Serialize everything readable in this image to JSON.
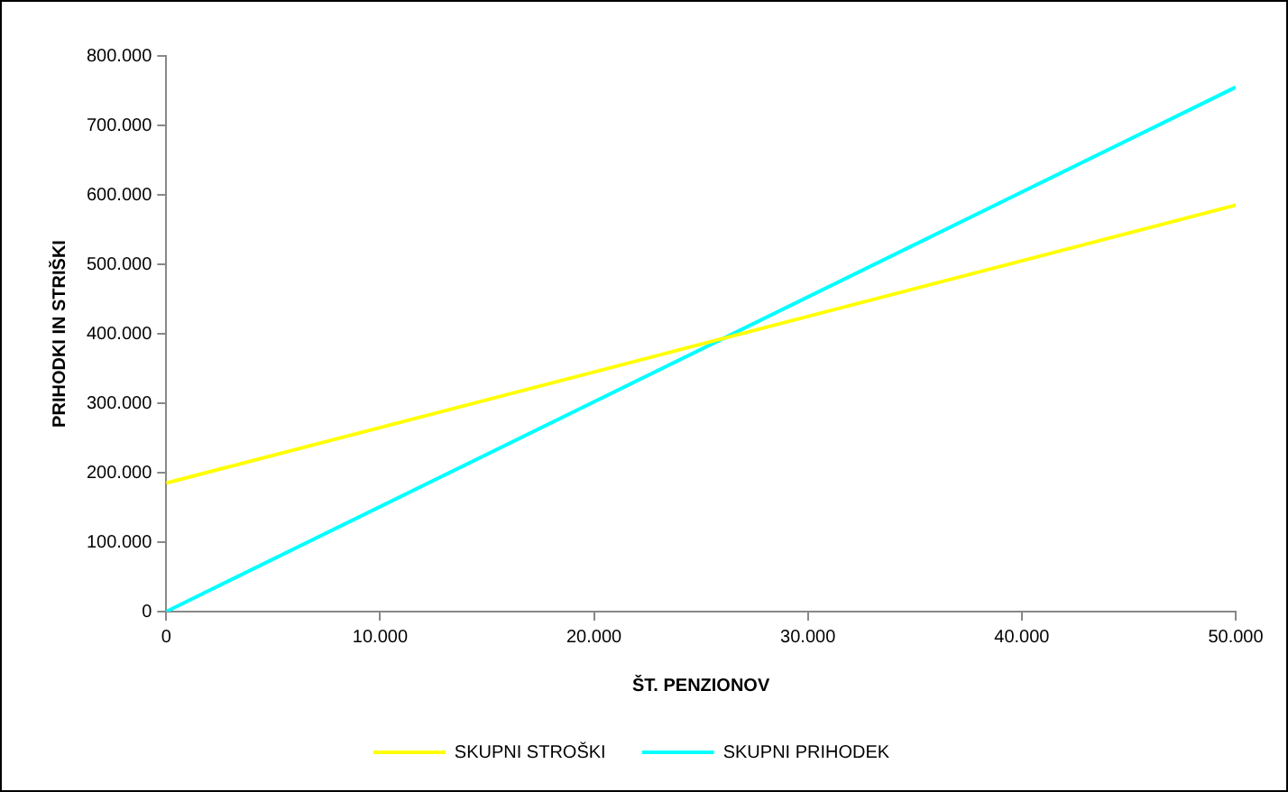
{
  "chart_data": {
    "type": "line",
    "xlabel": "ŠT. PENZIONOV",
    "ylabel": "PRIHODKI IN STRIŠKI",
    "x": [
      0,
      50000
    ],
    "series": [
      {
        "name": "SKUPNI STROŠKI",
        "color": "#ffff00",
        "values": [
          185000,
          585000
        ]
      },
      {
        "name": "SKUPNI PRIHODEK",
        "color": "#00ffff",
        "values": [
          0,
          755000
        ]
      }
    ],
    "xlim": [
      0,
      50000
    ],
    "xticks": [
      0,
      {
        "value": 10000,
        "label": "10.000"
      },
      {
        "value": 20000,
        "label": "20.000"
      },
      {
        "value": 30000,
        "label": "30.000"
      },
      {
        "value": 40000,
        "label": "40.000"
      },
      {
        "value": 50000,
        "label": "50.000"
      }
    ],
    "ylim": [
      0,
      800000
    ],
    "yticks": [
      0,
      {
        "value": 100000,
        "label": "100.000"
      },
      {
        "value": 200000,
        "label": "200.000"
      },
      {
        "value": 300000,
        "label": "300.000"
      },
      {
        "value": 400000,
        "label": "400.000"
      },
      {
        "value": 500000,
        "label": "500.000"
      },
      {
        "value": 600000,
        "label": "600.000"
      },
      {
        "value": 700000,
        "label": "700.000"
      },
      {
        "value": 800000,
        "label": "800.000"
      }
    ],
    "grid": false,
    "legend": "bottom",
    "marker": "none",
    "line_style": "solid"
  }
}
